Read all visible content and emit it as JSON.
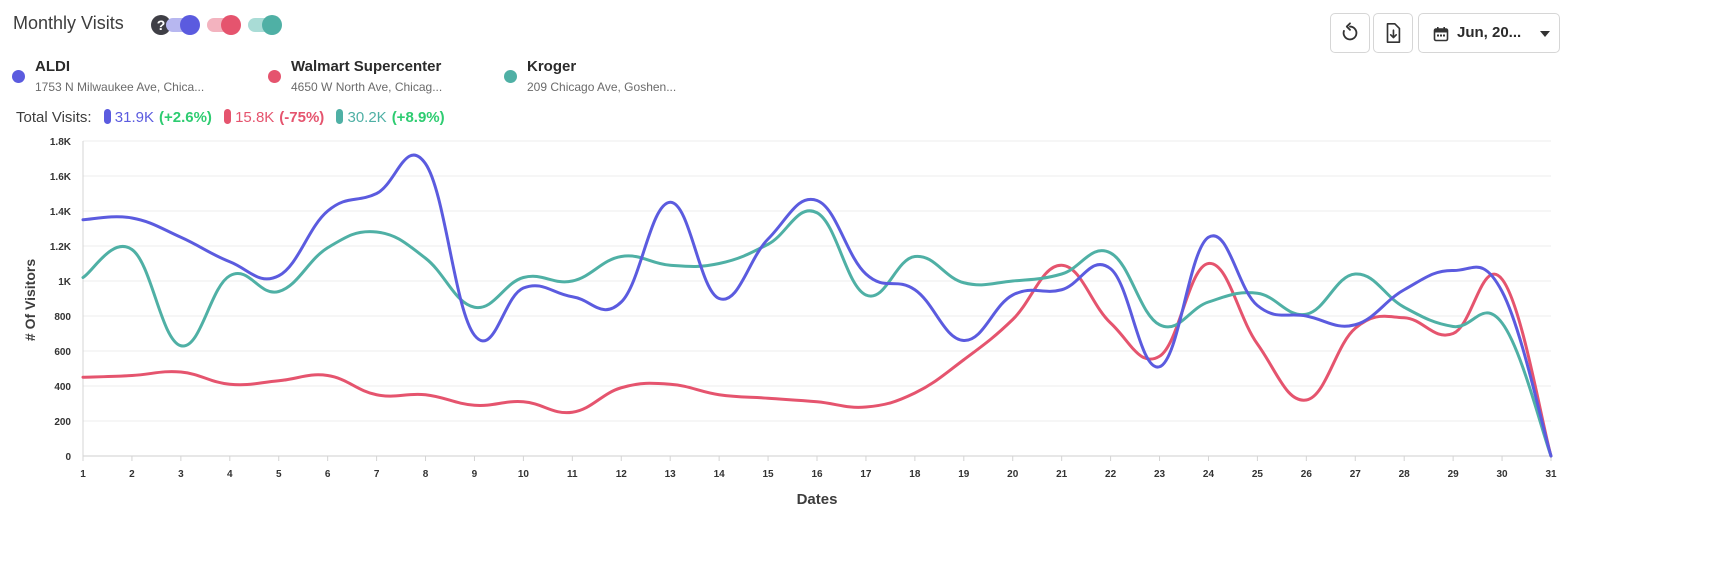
{
  "header": {
    "title": "Monthly Visits",
    "help_icon": "question-circle-icon",
    "date_range_label": "Jun, 20..."
  },
  "colors": {
    "aldi": "#5b5bdf",
    "walmart": "#e5546e",
    "kroger": "#4fb0a5"
  },
  "locations": [
    {
      "name": "ALDI",
      "address": "1753 N Milwaukee Ave, Chica...",
      "color": "#5b5bdf"
    },
    {
      "name": "Walmart Supercenter",
      "address": "4650 W North Ave, Chicag...",
      "color": "#e5546e"
    },
    {
      "name": "Kroger",
      "address": "209 Chicago Ave, Goshen...",
      "color": "#4fb0a5"
    }
  ],
  "totals": {
    "label": "Total Visits:",
    "items": [
      {
        "value": "31.9K",
        "change": "(+2.6%)",
        "change_color": "#2ecc71"
      },
      {
        "value": "15.8K",
        "change": "(-75%)",
        "change_color": "#e5546e"
      },
      {
        "value": "30.2K",
        "change": "(+8.9%)",
        "change_color": "#2ecc71"
      }
    ]
  },
  "chart_data": {
    "type": "line",
    "xlabel": "Dates",
    "ylabel": "# Of Visitors",
    "x": [
      1,
      2,
      3,
      4,
      5,
      6,
      7,
      8,
      9,
      10,
      11,
      12,
      13,
      14,
      15,
      16,
      17,
      18,
      19,
      20,
      21,
      22,
      23,
      24,
      25,
      26,
      27,
      28,
      29,
      30,
      31
    ],
    "ylim": [
      0,
      1800
    ],
    "yticks": [
      0,
      200,
      400,
      600,
      800,
      1000,
      1200,
      1400,
      1600,
      1800
    ],
    "ytick_labels": [
      "0",
      "200",
      "400",
      "600",
      "800",
      "1K",
      "1.2K",
      "1.4K",
      "1.6K",
      "1.8K"
    ],
    "grid": true,
    "series": [
      {
        "name": "ALDI",
        "color": "#5b5bdf",
        "values": [
          1350,
          1360,
          1250,
          1110,
          1030,
          1400,
          1500,
          1670,
          690,
          960,
          910,
          880,
          1450,
          900,
          1240,
          1460,
          1040,
          950,
          660,
          920,
          950,
          1070,
          510,
          1250,
          860,
          800,
          750,
          950,
          1060,
          940,
          0
        ]
      },
      {
        "name": "Walmart Supercenter",
        "color": "#e5546e",
        "values": [
          450,
          460,
          480,
          410,
          430,
          460,
          350,
          350,
          290,
          310,
          250,
          390,
          410,
          350,
          330,
          310,
          280,
          360,
          550,
          780,
          1090,
          760,
          570,
          1100,
          640,
          320,
          730,
          790,
          700,
          1010,
          0
        ]
      },
      {
        "name": "Kroger",
        "color": "#4fb0a5",
        "values": [
          1020,
          1180,
          630,
          1030,
          940,
          1190,
          1280,
          1130,
          850,
          1020,
          1000,
          1140,
          1090,
          1100,
          1210,
          1390,
          920,
          1140,
          990,
          1000,
          1040,
          1160,
          750,
          880,
          930,
          810,
          1040,
          850,
          740,
          760,
          0
        ]
      }
    ]
  }
}
